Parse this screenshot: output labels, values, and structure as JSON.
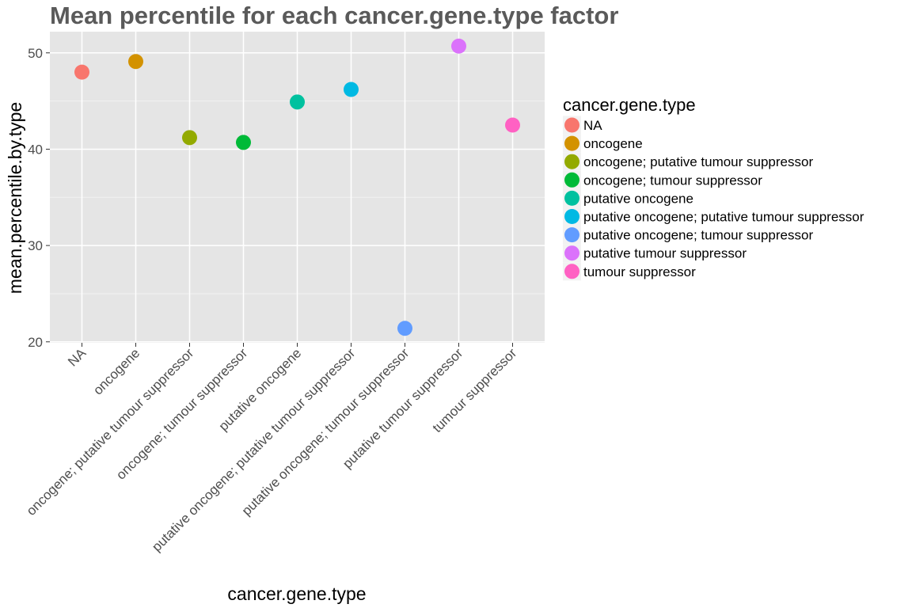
{
  "chart_data": {
    "type": "scatter",
    "title": "Mean percentile for each cancer.gene.type factor",
    "xlabel": "cancer.gene.type",
    "ylabel": "mean.percentile.by.type",
    "ylim": [
      19.9,
      52.2
    ],
    "yticks": [
      20,
      30,
      40,
      50
    ],
    "grid": true,
    "legend": {
      "title": "cancer.gene.type",
      "placement": "right"
    },
    "categories": [
      "NA",
      "oncogene",
      "oncogene; putative tumour suppressor",
      "oncogene; tumour suppressor",
      "putative oncogene",
      "putative oncogene; putative tumour suppressor",
      "putative oncogene; tumour suppressor",
      "putative tumour suppressor",
      "tumour suppressor"
    ],
    "values": [
      48.0,
      49.1,
      41.2,
      40.7,
      44.9,
      46.2,
      21.4,
      50.7,
      42.5
    ],
    "colors": [
      "#F8766D",
      "#D39200",
      "#93AA00",
      "#00BA38",
      "#00C19F",
      "#00B9E3",
      "#619CFF",
      "#DB72FB",
      "#FF61C3"
    ]
  }
}
